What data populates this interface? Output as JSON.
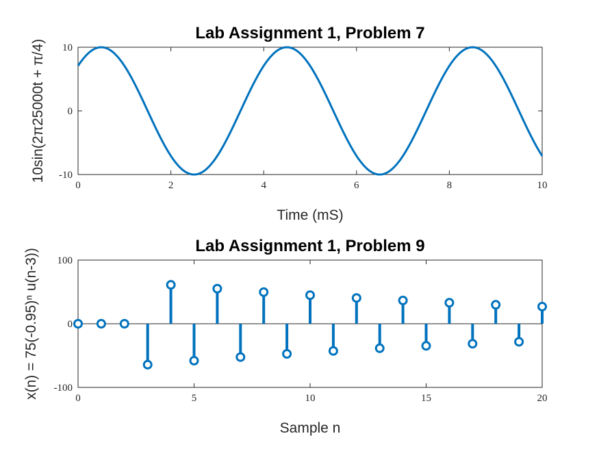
{
  "chart_data": [
    {
      "type": "line",
      "title": "Lab Assignment 1, Problem 7",
      "xlabel": "Time (mS)",
      "ylabel": "10sin(2π25000t + π/4)",
      "xlim": [
        0,
        10
      ],
      "ylim": [
        -10,
        10
      ],
      "xticks": [
        0,
        2,
        4,
        6,
        8,
        10
      ],
      "yticks": [
        -10,
        0,
        10
      ],
      "series": [
        {
          "color": "#0072BD",
          "x": [
            0,
            0.25,
            0.5,
            0.75,
            1,
            1.25,
            1.5,
            1.75,
            2,
            2.25,
            2.5,
            2.75,
            3,
            3.25,
            3.5,
            3.75,
            4,
            4.25,
            4.5,
            4.75,
            5,
            5.25,
            5.5,
            5.75,
            6,
            6.25,
            6.5,
            6.75,
            7,
            7.25,
            7.5,
            7.75,
            8,
            8.25,
            8.5,
            8.75,
            9,
            9.25,
            9.5,
            9.75,
            10
          ],
          "y": [
            7.07,
            9.24,
            10,
            9.24,
            7.07,
            3.83,
            0,
            -3.83,
            -7.07,
            -9.24,
            -10,
            -9.24,
            -7.07,
            -3.83,
            0,
            3.83,
            7.07,
            9.24,
            10,
            9.24,
            7.07,
            3.83,
            0,
            -3.83,
            -7.07,
            -9.24,
            -10,
            -9.24,
            -7.07,
            -3.83,
            0,
            3.83,
            7.07,
            9.24,
            10,
            9.24,
            7.07,
            3.83,
            0,
            -3.83,
            -7.07
          ]
        }
      ]
    },
    {
      "type": "stem",
      "title": "Lab Assignment 1, Problem 9",
      "xlabel": "Sample n",
      "ylabel": "x(n) = 75(-0.95)ⁿ u(n-3))",
      "xlim": [
        0,
        20
      ],
      "ylim": [
        -100,
        100
      ],
      "xticks": [
        0,
        5,
        10,
        15,
        20
      ],
      "yticks": [
        -100,
        0,
        100
      ],
      "series": [
        {
          "color": "#0072BD",
          "x": [
            0,
            1,
            2,
            3,
            4,
            5,
            6,
            7,
            8,
            9,
            10,
            11,
            12,
            13,
            14,
            15,
            16,
            17,
            18,
            19,
            20
          ],
          "y": [
            0,
            0,
            0,
            -64.3,
            61.1,
            -58.0,
            55.1,
            -52.4,
            49.7,
            -47.3,
            44.9,
            -42.7,
            40.5,
            -38.5,
            36.6,
            -34.7,
            33.0,
            -31.4,
            29.8,
            -28.3,
            26.9
          ]
        }
      ]
    }
  ]
}
